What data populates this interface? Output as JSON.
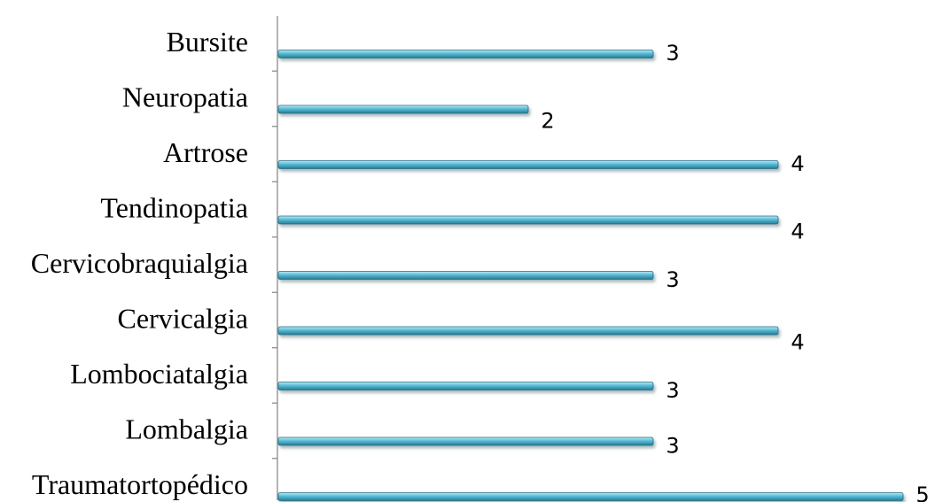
{
  "chart_data": {
    "type": "bar",
    "orientation": "horizontal",
    "categories": [
      "Bursite",
      "Neuropatia",
      "Artrose",
      "Tendinopatia",
      "Cervicobraquialgia",
      "Cervicalgia",
      "Lombociatalgia",
      "Lombalgia",
      "Traumatortopédico"
    ],
    "values": [
      3,
      2,
      4,
      4,
      3,
      4,
      3,
      3,
      5
    ],
    "value_labels": [
      "3",
      "2",
      "4",
      "4",
      "3",
      "4",
      "3",
      "3",
      "5"
    ],
    "title": "",
    "xlabel": "",
    "ylabel": "",
    "xlim": [
      0,
      5
    ],
    "grid": false,
    "legend": "none",
    "bar_color": "#4fb3cf",
    "bar_highlight": "#a8e0ee",
    "bar_shadow": "#1f6f87"
  }
}
